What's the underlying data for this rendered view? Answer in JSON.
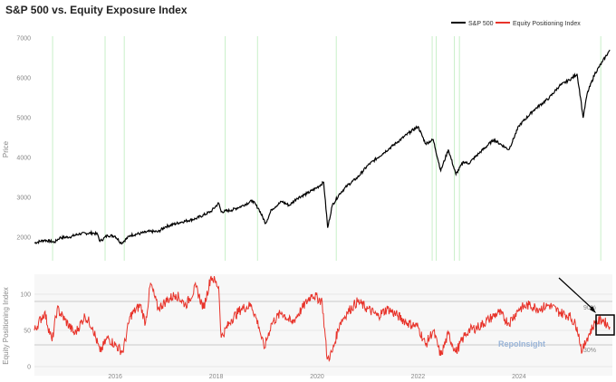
{
  "chart_data": {
    "type": "line",
    "title": "S&P 500 vs. Equity Exposure Index",
    "legend": [
      "S&P 500",
      "Equity Positioning Index"
    ],
    "legend_position": "top-right",
    "colors": {
      "sp500": "#000000",
      "epi": "#e8332a",
      "highlight": "#c8efc8",
      "ref": "#bbbbbb"
    },
    "x_range": [
      2014.4,
      2025.85
    ],
    "x_ticks": [
      {
        "value": 2016,
        "label": "2016"
      },
      {
        "value": 2018,
        "label": "2018"
      },
      {
        "value": 2020,
        "label": "2020"
      },
      {
        "value": 2022,
        "label": "2022"
      },
      {
        "value": 2024,
        "label": "2024"
      }
    ],
    "top_panel": {
      "ylabel": "Price",
      "ylim": [
        1800,
        7000
      ],
      "y_ticks": [
        2000,
        3000,
        4000,
        5000,
        6000,
        7000
      ],
      "series": {
        "name": "S&P 500",
        "points": [
          [
            2014.4,
            1860
          ],
          [
            2014.6,
            1930
          ],
          [
            2014.8,
            1880
          ],
          [
            2014.9,
            1990
          ],
          [
            2015.1,
            2010
          ],
          [
            2015.3,
            2090
          ],
          [
            2015.55,
            2110
          ],
          [
            2015.65,
            2080
          ],
          [
            2015.7,
            1900
          ],
          [
            2015.85,
            2050
          ],
          [
            2016.0,
            2030
          ],
          [
            2016.12,
            1850
          ],
          [
            2016.3,
            2050
          ],
          [
            2016.5,
            2100
          ],
          [
            2016.7,
            2150
          ],
          [
            2016.85,
            2140
          ],
          [
            2017.0,
            2270
          ],
          [
            2017.3,
            2380
          ],
          [
            2017.6,
            2470
          ],
          [
            2017.9,
            2650
          ],
          [
            2018.05,
            2860
          ],
          [
            2018.1,
            2640
          ],
          [
            2018.3,
            2680
          ],
          [
            2018.5,
            2780
          ],
          [
            2018.72,
            2920
          ],
          [
            2018.85,
            2700
          ],
          [
            2018.98,
            2350
          ],
          [
            2019.1,
            2700
          ],
          [
            2019.3,
            2900
          ],
          [
            2019.45,
            2800
          ],
          [
            2019.6,
            2980
          ],
          [
            2019.8,
            3100
          ],
          [
            2020.0,
            3250
          ],
          [
            2020.13,
            3380
          ],
          [
            2020.21,
            2240
          ],
          [
            2020.3,
            2800
          ],
          [
            2020.45,
            3100
          ],
          [
            2020.6,
            3300
          ],
          [
            2020.8,
            3500
          ],
          [
            2021.0,
            3800
          ],
          [
            2021.3,
            4100
          ],
          [
            2021.6,
            4400
          ],
          [
            2021.85,
            4650
          ],
          [
            2022.0,
            4780
          ],
          [
            2022.15,
            4350
          ],
          [
            2022.3,
            4450
          ],
          [
            2022.45,
            3670
          ],
          [
            2022.6,
            4200
          ],
          [
            2022.75,
            3580
          ],
          [
            2022.9,
            3900
          ],
          [
            2023.0,
            3850
          ],
          [
            2023.2,
            4100
          ],
          [
            2023.5,
            4450
          ],
          [
            2023.8,
            4200
          ],
          [
            2024.0,
            4800
          ],
          [
            2024.3,
            5200
          ],
          [
            2024.6,
            5500
          ],
          [
            2024.8,
            5800
          ],
          [
            2025.0,
            5950
          ],
          [
            2025.15,
            6100
          ],
          [
            2025.22,
            5500
          ],
          [
            2025.27,
            5000
          ],
          [
            2025.35,
            5600
          ],
          [
            2025.5,
            6100
          ],
          [
            2025.65,
            6400
          ],
          [
            2025.8,
            6700
          ]
        ]
      }
    },
    "bottom_panel": {
      "ylabel": "Equity Positioning Index",
      "ylim": [
        0,
        125
      ],
      "y_ticks": [
        0,
        50,
        100
      ],
      "reference_lines": [
        {
          "value": 90,
          "label": "90%"
        },
        {
          "value": 30,
          "label": "30%"
        }
      ],
      "series": {
        "name": "Equity Positioning Index",
        "points": [
          [
            2014.4,
            50
          ],
          [
            2014.6,
            75
          ],
          [
            2014.75,
            35
          ],
          [
            2014.85,
            80
          ],
          [
            2015.0,
            65
          ],
          [
            2015.2,
            45
          ],
          [
            2015.4,
            70
          ],
          [
            2015.55,
            55
          ],
          [
            2015.7,
            20
          ],
          [
            2015.85,
            40
          ],
          [
            2016.0,
            30
          ],
          [
            2016.15,
            20
          ],
          [
            2016.3,
            70
          ],
          [
            2016.5,
            85
          ],
          [
            2016.6,
            60
          ],
          [
            2016.7,
            115
          ],
          [
            2016.85,
            80
          ],
          [
            2017.0,
            90
          ],
          [
            2017.2,
            100
          ],
          [
            2017.4,
            85
          ],
          [
            2017.6,
            110
          ],
          [
            2017.75,
            80
          ],
          [
            2017.9,
            125
          ],
          [
            2018.05,
            110
          ],
          [
            2018.1,
            40
          ],
          [
            2018.3,
            65
          ],
          [
            2018.5,
            80
          ],
          [
            2018.7,
            85
          ],
          [
            2018.85,
            55
          ],
          [
            2018.95,
            25
          ],
          [
            2019.1,
            60
          ],
          [
            2019.3,
            75
          ],
          [
            2019.5,
            60
          ],
          [
            2019.7,
            80
          ],
          [
            2019.9,
            100
          ],
          [
            2020.1,
            90
          ],
          [
            2020.2,
            10
          ],
          [
            2020.3,
            20
          ],
          [
            2020.45,
            60
          ],
          [
            2020.6,
            75
          ],
          [
            2020.8,
            90
          ],
          [
            2021.0,
            80
          ],
          [
            2021.2,
            70
          ],
          [
            2021.4,
            80
          ],
          [
            2021.6,
            70
          ],
          [
            2021.8,
            60
          ],
          [
            2022.0,
            55
          ],
          [
            2022.15,
            30
          ],
          [
            2022.3,
            50
          ],
          [
            2022.45,
            15
          ],
          [
            2022.6,
            45
          ],
          [
            2022.75,
            20
          ],
          [
            2022.9,
            40
          ],
          [
            2023.0,
            50
          ],
          [
            2023.2,
            55
          ],
          [
            2023.4,
            65
          ],
          [
            2023.6,
            75
          ],
          [
            2023.8,
            60
          ],
          [
            2024.0,
            80
          ],
          [
            2024.2,
            85
          ],
          [
            2024.4,
            80
          ],
          [
            2024.6,
            85
          ],
          [
            2024.8,
            75
          ],
          [
            2025.0,
            70
          ],
          [
            2025.15,
            55
          ],
          [
            2025.25,
            20
          ],
          [
            2025.35,
            40
          ],
          [
            2025.5,
            60
          ],
          [
            2025.65,
            65
          ],
          [
            2025.8,
            55
          ]
        ]
      }
    },
    "highlight_dates": [
      2014.76,
      2015.8,
      2016.18,
      2018.18,
      2018.82,
      2020.38,
      2022.28,
      2022.36,
      2022.72,
      2022.82,
      2025.62
    ],
    "annotations": {
      "watermark": "RepoInsight"
    }
  }
}
